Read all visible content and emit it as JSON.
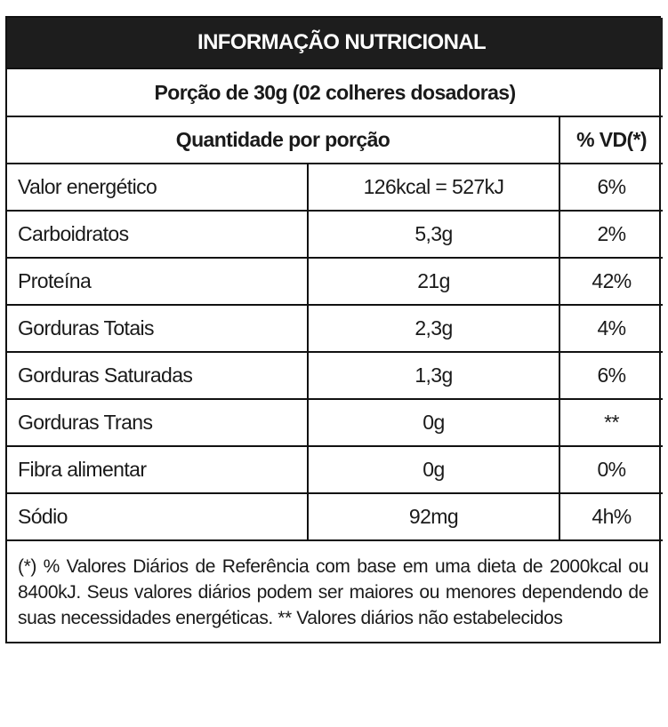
{
  "header": {
    "title": "INFORMAÇÃO NUTRICIONAL",
    "portion": "Porção de 30g (02 colheres dosadoras)"
  },
  "table": {
    "columns": [
      "Quantidade por porção",
      "% VD(*)"
    ],
    "rows": [
      [
        "Valor energético",
        "126kcal = 527kJ",
        "6%"
      ],
      [
        "Carboidratos",
        "5,3g",
        "2%"
      ],
      [
        "Proteína",
        "21g",
        "42%"
      ],
      [
        "Gorduras Totais",
        "2,3g",
        "4%"
      ],
      [
        "Gorduras Saturadas",
        "1,3g",
        "6%"
      ],
      [
        "Gorduras Trans",
        "0g",
        "**"
      ],
      [
        "Fibra alimentar",
        "0g",
        "0%"
      ],
      [
        "Sódio",
        "92mg",
        "4h%"
      ]
    ]
  },
  "footnote": "(*) % Valores Diários de Referência com base em uma dieta de 2000kcal ou 8400kJ. Seus valores diários podem ser maiores ou menores dependendo de suas necessidades energéticas. ** Valores diários não estabelecidos"
}
